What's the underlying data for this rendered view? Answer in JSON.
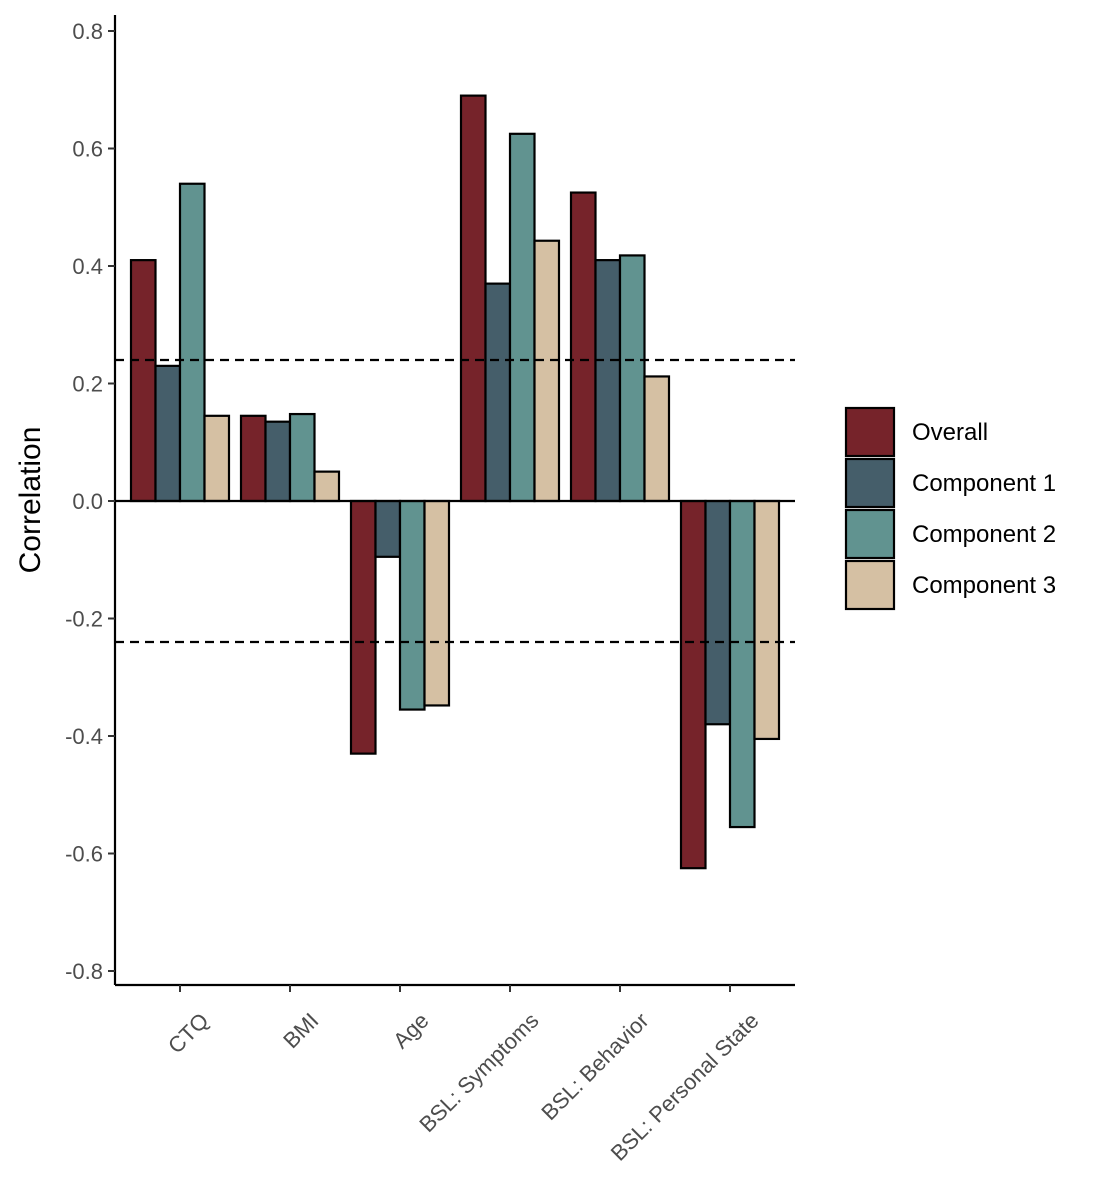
{
  "chart_data": {
    "type": "bar",
    "title": "",
    "xlabel": "",
    "ylabel": "Correlation",
    "ylim": [
      -0.82,
      0.82
    ],
    "yticks": [
      "-0.8",
      "-0.6",
      "-0.4",
      "-0.2",
      "0.0",
      "0.2",
      "0.4",
      "0.6",
      "0.8"
    ],
    "categories": [
      "CTQ",
      "BMI",
      "Age",
      "BSL: Symptoms",
      "BSL: Behavior",
      "BSL: Personal State"
    ],
    "series": [
      {
        "name": "Overall",
        "color": "#76232a",
        "values": [
          0.41,
          0.145,
          -0.43,
          0.69,
          0.525,
          -0.625
        ]
      },
      {
        "name": "Component 1",
        "color": "#455e6a",
        "values": [
          0.23,
          0.135,
          -0.095,
          0.37,
          0.41,
          -0.38
        ]
      },
      {
        "name": "Component 2",
        "color": "#619390",
        "values": [
          0.54,
          0.148,
          -0.355,
          0.625,
          0.418,
          -0.555
        ]
      },
      {
        "name": "Component 3",
        "color": "#d5c0a3",
        "values": [
          0.145,
          0.05,
          -0.348,
          0.443,
          0.212,
          -0.405
        ]
      }
    ],
    "reference_lines": [
      0.24,
      -0.24
    ],
    "grid": false,
    "legend_position": "right"
  }
}
